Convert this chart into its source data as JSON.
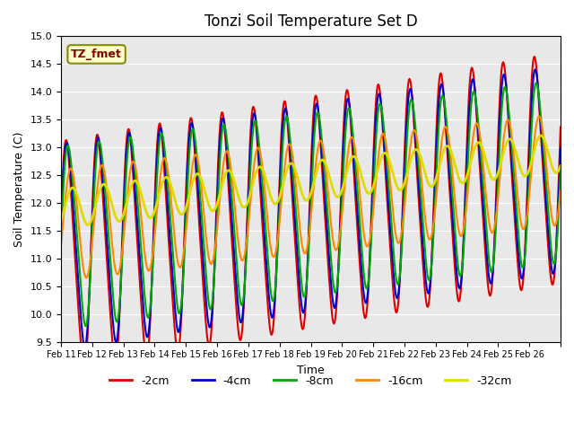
{
  "title": "Tonzi Soil Temperature Set D",
  "xlabel": "Time",
  "ylabel": "Soil Temperature (C)",
  "ylim": [
    9.5,
    15.0
  ],
  "yticks": [
    9.5,
    10.0,
    10.5,
    11.0,
    11.5,
    12.0,
    12.5,
    13.0,
    13.5,
    14.0,
    14.5,
    15.0
  ],
  "annotation_text": "TZ_fmet",
  "bg_color": "#e8e8e8",
  "series": {
    "-2cm": {
      "color": "#dd0000",
      "lw": 1.5
    },
    "-4cm": {
      "color": "#0000cc",
      "lw": 1.5
    },
    "-8cm": {
      "color": "#00aa00",
      "lw": 1.5
    },
    "-16cm": {
      "color": "#ff8800",
      "lw": 1.5
    },
    "-32cm": {
      "color": "#dddd00",
      "lw": 2.0
    }
  },
  "x_tick_labels": [
    "Feb 11",
    "Feb 12",
    "Feb 13",
    "Feb 14",
    "Feb 15",
    "Feb 16",
    "Feb 17",
    "Feb 18",
    "Feb 19",
    "Feb 20",
    "Feb 21",
    "Feb 22",
    "Feb 23",
    "Feb 24",
    "Feb 25",
    "Feb 26"
  ],
  "n_days": 16,
  "points_per_day": 48
}
